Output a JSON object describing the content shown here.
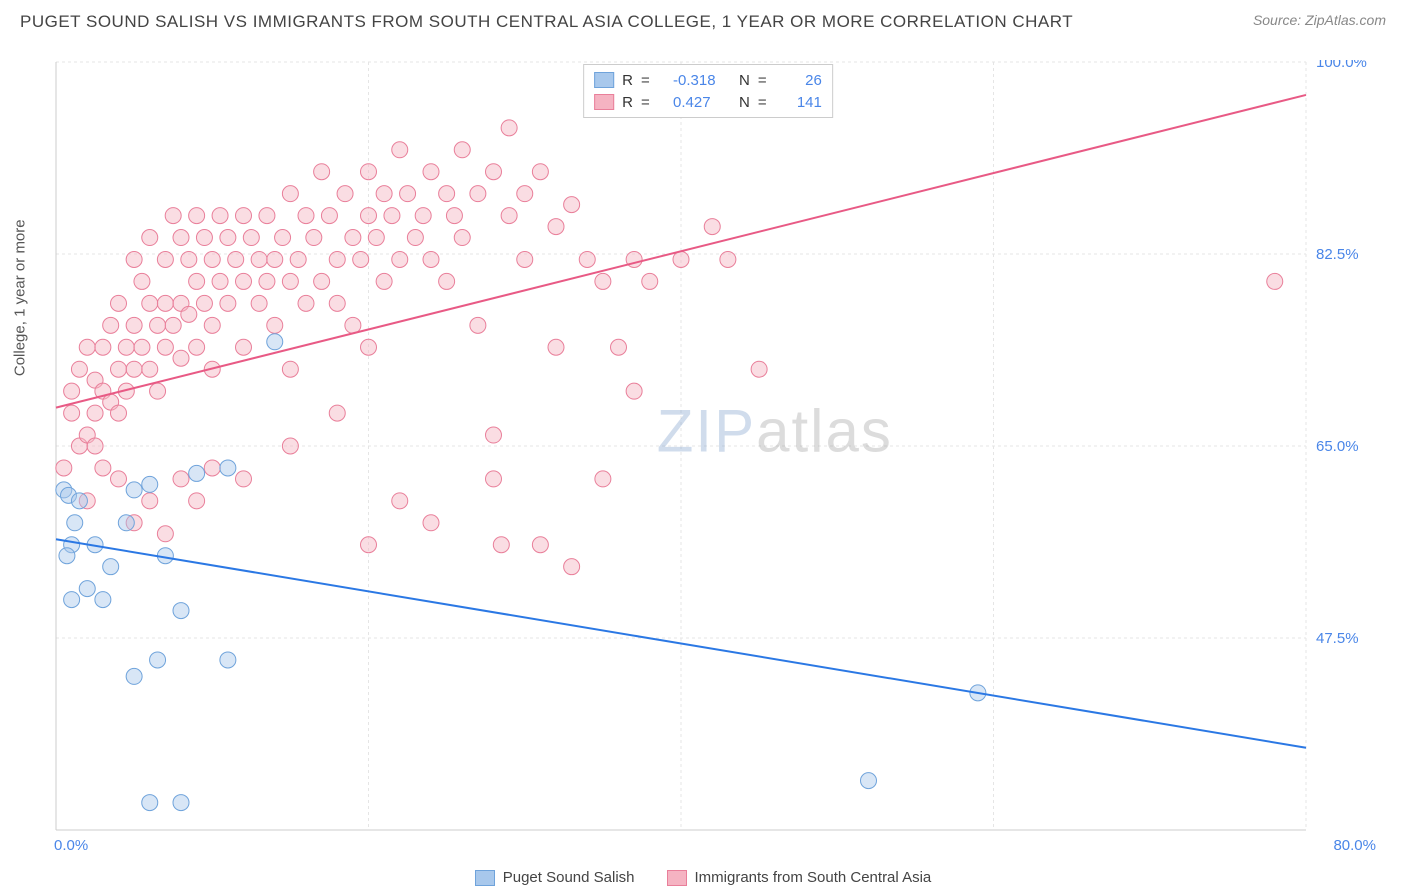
{
  "header": {
    "title": "PUGET SOUND SALISH VS IMMIGRANTS FROM SOUTH CENTRAL ASIA COLLEGE, 1 YEAR OR MORE CORRELATION CHART",
    "source_prefix": "Source: ",
    "source": "ZipAtlas.com"
  },
  "chart": {
    "type": "scatter",
    "ylabel": "College, 1 year or more",
    "xlim": [
      0,
      80
    ],
    "ylim": [
      30,
      100
    ],
    "x_axis_min_label": "0.0%",
    "x_axis_max_label": "80.0%",
    "y_ticks": [
      47.5,
      65.0,
      82.5,
      100.0
    ],
    "y_tick_labels": [
      "47.5%",
      "65.0%",
      "82.5%",
      "100.0%"
    ],
    "background_color": "#ffffff",
    "grid_color": "#e5e5e5",
    "axis_color": "#cccccc",
    "label_color": "#4a86e8",
    "marker_radius": 8,
    "marker_opacity": 0.45,
    "watermark_zip": "ZIP",
    "watermark_atlas": "atlas",
    "series": [
      {
        "name": "Puget Sound Salish",
        "color_fill": "#a8c8ec",
        "color_stroke": "#6fa3db",
        "R": "-0.318",
        "N": "26",
        "trend": {
          "x1": 0,
          "y1": 56.5,
          "x2": 80,
          "y2": 37.5,
          "color": "#2b78e4",
          "width": 2
        },
        "points": [
          [
            0.5,
            61
          ],
          [
            0.8,
            60.5
          ],
          [
            1.2,
            58
          ],
          [
            1,
            56
          ],
          [
            1,
            51
          ],
          [
            2,
            52
          ],
          [
            3,
            51
          ],
          [
            5,
            61
          ],
          [
            6,
            61.5
          ],
          [
            4.5,
            58
          ],
          [
            7,
            55
          ],
          [
            9,
            62.5
          ],
          [
            11,
            63
          ],
          [
            14,
            74.5
          ],
          [
            6.5,
            45.5
          ],
          [
            8,
            50
          ],
          [
            11,
            45.5
          ],
          [
            5,
            44
          ],
          [
            6,
            32.5
          ],
          [
            8,
            32.5
          ],
          [
            59,
            42.5
          ],
          [
            52,
            34.5
          ],
          [
            0.7,
            55
          ],
          [
            2.5,
            56
          ],
          [
            1.5,
            60
          ],
          [
            3.5,
            54
          ]
        ]
      },
      {
        "name": "Immigrants from South Central Asia",
        "color_fill": "#f5b3c2",
        "color_stroke": "#e97f9a",
        "R": "0.427",
        "N": "141",
        "trend": {
          "x1": 0,
          "y1": 68.5,
          "x2": 80,
          "y2": 97,
          "color": "#e85a85",
          "width": 2
        },
        "points": [
          [
            0.5,
            63
          ],
          [
            1,
            68
          ],
          [
            1,
            70
          ],
          [
            1.5,
            65
          ],
          [
            1.5,
            72
          ],
          [
            2,
            66
          ],
          [
            2,
            60
          ],
          [
            2,
            74
          ],
          [
            2.5,
            71
          ],
          [
            2.5,
            68
          ],
          [
            2.5,
            65
          ],
          [
            3,
            74
          ],
          [
            3,
            70
          ],
          [
            3,
            63
          ],
          [
            3.5,
            76
          ],
          [
            3.5,
            69
          ],
          [
            4,
            72
          ],
          [
            4,
            68
          ],
          [
            4,
            78
          ],
          [
            4.5,
            74
          ],
          [
            4.5,
            70
          ],
          [
            5,
            82
          ],
          [
            5,
            76
          ],
          [
            5,
            72
          ],
          [
            5.5,
            74
          ],
          [
            5.5,
            80
          ],
          [
            6,
            78
          ],
          [
            6,
            72
          ],
          [
            6,
            84
          ],
          [
            6.5,
            76
          ],
          [
            6.5,
            70
          ],
          [
            7,
            78
          ],
          [
            7,
            82
          ],
          [
            7,
            74
          ],
          [
            7.5,
            86
          ],
          [
            7.5,
            76
          ],
          [
            8,
            78
          ],
          [
            8,
            73
          ],
          [
            8,
            84
          ],
          [
            8.5,
            77
          ],
          [
            8.5,
            82
          ],
          [
            9,
            80
          ],
          [
            9,
            74
          ],
          [
            9,
            86
          ],
          [
            9.5,
            78
          ],
          [
            9.5,
            84
          ],
          [
            10,
            82
          ],
          [
            10,
            76
          ],
          [
            10,
            72
          ],
          [
            10.5,
            80
          ],
          [
            10.5,
            86
          ],
          [
            11,
            78
          ],
          [
            11,
            84
          ],
          [
            11.5,
            82
          ],
          [
            12,
            80
          ],
          [
            12,
            86
          ],
          [
            12,
            74
          ],
          [
            12.5,
            84
          ],
          [
            13,
            78
          ],
          [
            13,
            82
          ],
          [
            13.5,
            80
          ],
          [
            13.5,
            86
          ],
          [
            14,
            82
          ],
          [
            14,
            76
          ],
          [
            14.5,
            84
          ],
          [
            15,
            80
          ],
          [
            15,
            88
          ],
          [
            15,
            72
          ],
          [
            15.5,
            82
          ],
          [
            16,
            86
          ],
          [
            16,
            78
          ],
          [
            16.5,
            84
          ],
          [
            17,
            80
          ],
          [
            17,
            90
          ],
          [
            17.5,
            86
          ],
          [
            18,
            82
          ],
          [
            18,
            78
          ],
          [
            18.5,
            88
          ],
          [
            19,
            84
          ],
          [
            19,
            76
          ],
          [
            19.5,
            82
          ],
          [
            20,
            86
          ],
          [
            20,
            90
          ],
          [
            20,
            74
          ],
          [
            20.5,
            84
          ],
          [
            21,
            80
          ],
          [
            21,
            88
          ],
          [
            21.5,
            86
          ],
          [
            22,
            82
          ],
          [
            22,
            92
          ],
          [
            22,
            60
          ],
          [
            22.5,
            88
          ],
          [
            23,
            84
          ],
          [
            23.5,
            86
          ],
          [
            24,
            90
          ],
          [
            24,
            82
          ],
          [
            25,
            88
          ],
          [
            25,
            80
          ],
          [
            25.5,
            86
          ],
          [
            26,
            84
          ],
          [
            26,
            92
          ],
          [
            27,
            88
          ],
          [
            27,
            76
          ],
          [
            28,
            90
          ],
          [
            28,
            66
          ],
          [
            28.5,
            56
          ],
          [
            29,
            86
          ],
          [
            29,
            94
          ],
          [
            30,
            88
          ],
          [
            30,
            82
          ],
          [
            31,
            90
          ],
          [
            31,
            56
          ],
          [
            32,
            85
          ],
          [
            32,
            74
          ],
          [
            33,
            87
          ],
          [
            34,
            82
          ],
          [
            35,
            80
          ],
          [
            35,
            62
          ],
          [
            36,
            74
          ],
          [
            37,
            82
          ],
          [
            37,
            70
          ],
          [
            38,
            80
          ],
          [
            40,
            82
          ],
          [
            42,
            85
          ],
          [
            43,
            82
          ],
          [
            45,
            72
          ],
          [
            78,
            80
          ],
          [
            4,
            62
          ],
          [
            5,
            58
          ],
          [
            6,
            60
          ],
          [
            7,
            57
          ],
          [
            8,
            62
          ],
          [
            9,
            60
          ],
          [
            10,
            63
          ],
          [
            12,
            62
          ],
          [
            15,
            65
          ],
          [
            18,
            68
          ],
          [
            20,
            56
          ],
          [
            24,
            58
          ],
          [
            28,
            62
          ],
          [
            33,
            54
          ]
        ]
      }
    ]
  },
  "legend_top_labels": {
    "R": "R",
    "eq": "=",
    "N": "N"
  }
}
